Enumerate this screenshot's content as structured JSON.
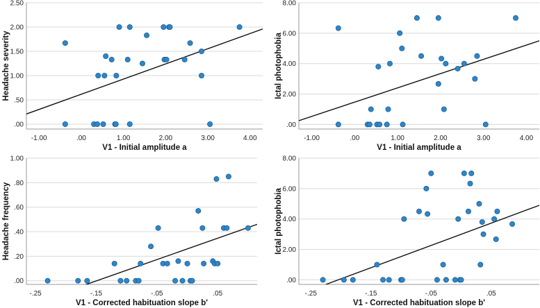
{
  "chart_data": [
    {
      "type": "scatter",
      "title": "",
      "xlabel": "V1 - Initial amplitude a",
      "ylabel": "Headache severity",
      "xlim": [
        -1.3,
        4.3
      ],
      "ylim": [
        -0.1,
        2.5
      ],
      "xticks": [
        -1.0,
        0.0,
        1.0,
        2.0,
        3.0,
        4.0
      ],
      "xtick_labels": [
        "-1.00",
        ".00",
        "1.00",
        "2.00",
        "3.00",
        "4.00"
      ],
      "yticks": [
        0.0,
        0.5,
        1.0,
        1.5,
        2.0,
        2.5
      ],
      "ytick_labels": [
        ".00",
        ".50",
        "1.00",
        "1.50",
        "2.00",
        "2.50"
      ],
      "fit_line": {
        "x": [
          -1.3,
          4.3
        ],
        "y": [
          0.21,
          1.96
        ]
      },
      "points": [
        {
          "x": -0.38,
          "y": 1.67
        },
        {
          "x": -0.38,
          "y": 0.0
        },
        {
          "x": 0.3,
          "y": 0.0
        },
        {
          "x": 0.38,
          "y": 0.0
        },
        {
          "x": 0.4,
          "y": 1.0
        },
        {
          "x": 0.52,
          "y": 0.0
        },
        {
          "x": 0.55,
          "y": 1.0
        },
        {
          "x": 0.58,
          "y": 1.4
        },
        {
          "x": 0.72,
          "y": 1.33
        },
        {
          "x": 0.8,
          "y": 0.0
        },
        {
          "x": 0.82,
          "y": 0.0
        },
        {
          "x": 0.83,
          "y": 1.0
        },
        {
          "x": 0.9,
          "y": 2.0
        },
        {
          "x": 1.1,
          "y": 1.33
        },
        {
          "x": 1.15,
          "y": 2.0
        },
        {
          "x": 1.15,
          "y": 0.0
        },
        {
          "x": 1.45,
          "y": 1.25
        },
        {
          "x": 1.55,
          "y": 1.83
        },
        {
          "x": 1.95,
          "y": 2.0
        },
        {
          "x": 1.97,
          "y": 1.33
        },
        {
          "x": 2.02,
          "y": 1.33
        },
        {
          "x": 2.08,
          "y": 2.0
        },
        {
          "x": 2.1,
          "y": 2.0
        },
        {
          "x": 2.45,
          "y": 1.33
        },
        {
          "x": 2.58,
          "y": 1.67
        },
        {
          "x": 2.85,
          "y": 1.5
        },
        {
          "x": 2.85,
          "y": 1.0
        },
        {
          "x": 3.05,
          "y": 0.0
        },
        {
          "x": 3.75,
          "y": 2.0
        }
      ]
    },
    {
      "type": "scatter",
      "title": "",
      "xlabel": "V1 - Initial amplitude a",
      "ylabel": "Ictal photophobia",
      "xlim": [
        -1.3,
        4.3
      ],
      "ylim": [
        -0.3,
        8.0
      ],
      "xticks": [
        -1.0,
        0.0,
        1.0,
        2.0,
        3.0,
        4.0
      ],
      "xtick_labels": [
        "-1.00",
        ".00",
        "1.00",
        "2.00",
        "3.00",
        "4.00"
      ],
      "yticks": [
        0.0,
        2.0,
        4.0,
        6.0,
        8.0
      ],
      "ytick_labels": [
        ".00",
        "2.00",
        "4.00",
        "6.00",
        "8.00"
      ],
      "fit_line": {
        "x": [
          -1.3,
          4.3
        ],
        "y": [
          0.25,
          5.5
        ]
      },
      "points": [
        {
          "x": -0.38,
          "y": 6.33
        },
        {
          "x": -0.38,
          "y": 0.0
        },
        {
          "x": 0.3,
          "y": 0.0
        },
        {
          "x": 0.35,
          "y": 0.0
        },
        {
          "x": 0.38,
          "y": 1.0
        },
        {
          "x": 0.52,
          "y": 0.0
        },
        {
          "x": 0.55,
          "y": 3.8
        },
        {
          "x": 0.58,
          "y": 0.0
        },
        {
          "x": 0.75,
          "y": 0.0
        },
        {
          "x": 0.78,
          "y": 1.0
        },
        {
          "x": 0.82,
          "y": 4.0
        },
        {
          "x": 1.05,
          "y": 6.0
        },
        {
          "x": 1.1,
          "y": 5.0
        },
        {
          "x": 1.12,
          "y": 0.0
        },
        {
          "x": 1.45,
          "y": 7.0
        },
        {
          "x": 1.55,
          "y": 4.5
        },
        {
          "x": 1.95,
          "y": 7.0
        },
        {
          "x": 1.95,
          "y": 2.67
        },
        {
          "x": 2.02,
          "y": 4.33
        },
        {
          "x": 2.08,
          "y": 1.0
        },
        {
          "x": 2.12,
          "y": 4.0
        },
        {
          "x": 2.4,
          "y": 3.67
        },
        {
          "x": 2.55,
          "y": 4.0
        },
        {
          "x": 2.8,
          "y": 3.0
        },
        {
          "x": 2.85,
          "y": 4.5
        },
        {
          "x": 3.05,
          "y": 0.0
        },
        {
          "x": 3.75,
          "y": 7.0
        }
      ]
    },
    {
      "type": "scatter",
      "title": "",
      "xlabel": "V1 - Corrected habituation slope b'",
      "ylabel": "Headache frequency",
      "xlim": [
        -0.265,
        0.115
      ],
      "ylim": [
        -0.03,
        1.0
      ],
      "xticks": [
        -0.25,
        -0.15,
        -0.05,
        0.05
      ],
      "xtick_labels": [
        "-.25",
        "-.15",
        "-.05",
        ".05"
      ],
      "yticks": [
        0.0,
        0.2,
        0.4,
        0.6,
        0.8,
        1.0
      ],
      "ytick_labels": [
        ".00",
        ".20",
        ".40",
        ".60",
        ".80",
        "1.00"
      ],
      "fit_line": {
        "x": [
          -0.172,
          0.115
        ],
        "y": [
          -0.04,
          0.46
        ]
      },
      "points": [
        {
          "x": -0.23,
          "y": 0.0
        },
        {
          "x": -0.18,
          "y": 0.0
        },
        {
          "x": -0.165,
          "y": 0.0
        },
        {
          "x": -0.12,
          "y": 0.14
        },
        {
          "x": -0.11,
          "y": 0.0
        },
        {
          "x": -0.1,
          "y": 0.0
        },
        {
          "x": -0.085,
          "y": 0.0
        },
        {
          "x": -0.08,
          "y": 0.0
        },
        {
          "x": -0.077,
          "y": 0.14
        },
        {
          "x": -0.06,
          "y": 0.28
        },
        {
          "x": -0.048,
          "y": 0.43
        },
        {
          "x": -0.04,
          "y": 0.14
        },
        {
          "x": -0.033,
          "y": 0.14
        },
        {
          "x": -0.02,
          "y": 0.0
        },
        {
          "x": -0.015,
          "y": 0.16
        },
        {
          "x": -0.008,
          "y": 0.0
        },
        {
          "x": 0.0,
          "y": 0.14
        },
        {
          "x": 0.005,
          "y": 0.0
        },
        {
          "x": 0.008,
          "y": 0.0
        },
        {
          "x": 0.018,
          "y": 0.57
        },
        {
          "x": 0.025,
          "y": 0.43
        },
        {
          "x": 0.027,
          "y": 0.14
        },
        {
          "x": 0.042,
          "y": 0.16
        },
        {
          "x": 0.045,
          "y": 0.14
        },
        {
          "x": 0.048,
          "y": 0.83
        },
        {
          "x": 0.05,
          "y": 0.14
        },
        {
          "x": 0.06,
          "y": 0.43
        },
        {
          "x": 0.065,
          "y": 0.43
        },
        {
          "x": 0.068,
          "y": 0.85
        },
        {
          "x": 0.1,
          "y": 0.43
        }
      ]
    },
    {
      "type": "scatter",
      "title": "",
      "xlabel": "V1 -  Corrected habituation slope b'",
      "ylabel": "Ictal photophobia",
      "xlim": [
        -0.27,
        0.13
      ],
      "ylim": [
        -0.3,
        8.0
      ],
      "xticks": [
        -0.25,
        -0.15,
        -0.05,
        0.05
      ],
      "xtick_labels": [
        "-.25",
        "-.15",
        "-.05",
        ".05"
      ],
      "yticks": [
        0.0,
        2.0,
        4.0,
        6.0,
        8.0
      ],
      "ytick_labels": [
        ".00",
        "2.00",
        "4.00",
        "6.00",
        "8.00"
      ],
      "fit_line": {
        "x": [
          -0.225,
          0.13
        ],
        "y": [
          -0.3,
          4.9
        ]
      },
      "points": [
        {
          "x": -0.23,
          "y": 0.0
        },
        {
          "x": -0.195,
          "y": 0.0
        },
        {
          "x": -0.18,
          "y": 0.0
        },
        {
          "x": -0.14,
          "y": 1.0
        },
        {
          "x": -0.13,
          "y": 0.0
        },
        {
          "x": -0.12,
          "y": 0.0
        },
        {
          "x": -0.1,
          "y": 0.0
        },
        {
          "x": -0.098,
          "y": 0.0
        },
        {
          "x": -0.095,
          "y": 4.0
        },
        {
          "x": -0.07,
          "y": 4.5
        },
        {
          "x": -0.058,
          "y": 6.0
        },
        {
          "x": -0.056,
          "y": 4.33
        },
        {
          "x": -0.05,
          "y": 7.0
        },
        {
          "x": -0.04,
          "y": 0.0
        },
        {
          "x": -0.03,
          "y": 1.0
        },
        {
          "x": -0.025,
          "y": 0.0
        },
        {
          "x": -0.01,
          "y": 0.0
        },
        {
          "x": -0.005,
          "y": 4.0
        },
        {
          "x": -0.002,
          "y": 0.0
        },
        {
          "x": 0.0,
          "y": 0.0
        },
        {
          "x": 0.005,
          "y": 7.0
        },
        {
          "x": 0.012,
          "y": 4.5
        },
        {
          "x": 0.015,
          "y": 6.33
        },
        {
          "x": 0.017,
          "y": 7.0
        },
        {
          "x": 0.03,
          "y": 5.0
        },
        {
          "x": 0.032,
          "y": 1.0
        },
        {
          "x": 0.035,
          "y": 3.8
        },
        {
          "x": 0.037,
          "y": 3.0
        },
        {
          "x": 0.055,
          "y": 4.0
        },
        {
          "x": 0.058,
          "y": 2.67
        },
        {
          "x": 0.06,
          "y": 4.5
        },
        {
          "x": 0.085,
          "y": 3.67
        }
      ]
    }
  ]
}
